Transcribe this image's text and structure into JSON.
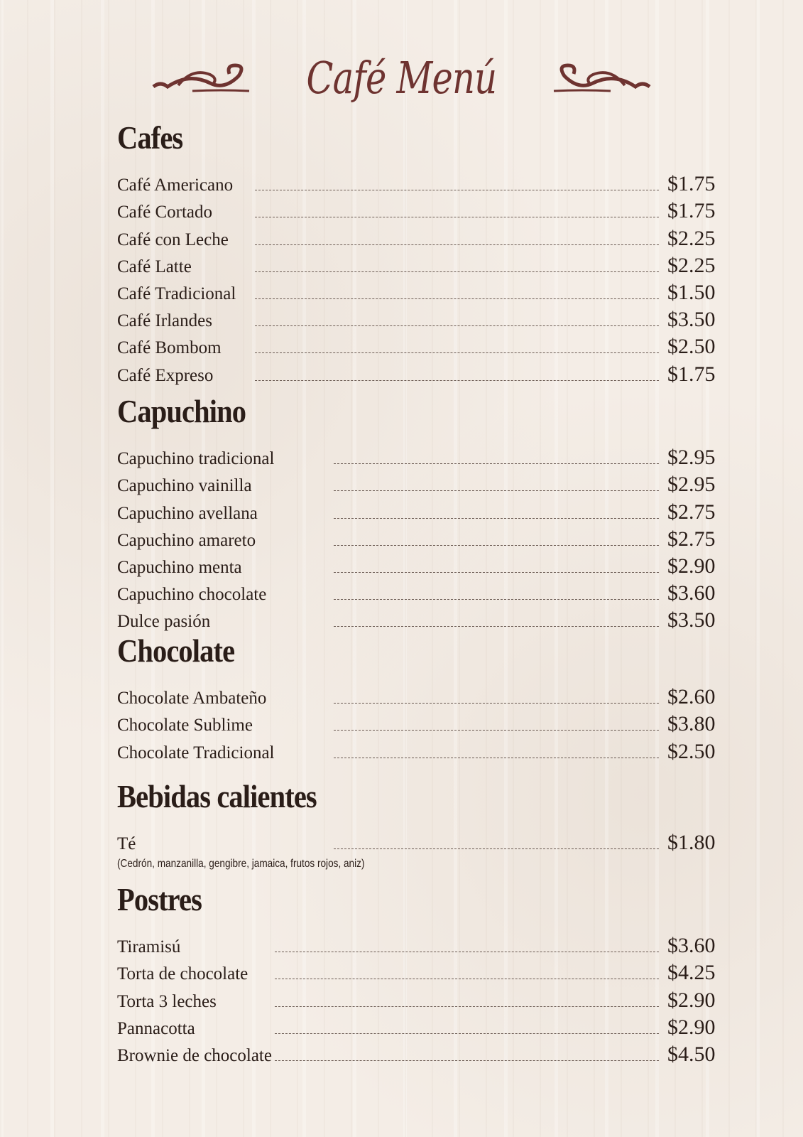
{
  "title": "Café Menú",
  "colors": {
    "title": "#6e3330",
    "text": "#2a1d18",
    "background": "#f4ede6"
  },
  "sections": [
    {
      "heading": "Cafes",
      "items": [
        {
          "name": "Café Americano",
          "price": "$1.75"
        },
        {
          "name": "Café Cortado",
          "price": "$1.75"
        },
        {
          "name": "Café con Leche",
          "price": "$2.25"
        },
        {
          "name": "Café Latte",
          "price": "$2.25"
        },
        {
          "name": "Café Tradicional",
          "price": "$1.50"
        },
        {
          "name": "Café Irlandes",
          "price": "$3.50"
        },
        {
          "name": "Café Bombom",
          "price": "$2.50"
        },
        {
          "name": "Café Expreso",
          "price": "$1.75"
        }
      ]
    },
    {
      "heading": "Capuchino",
      "items": [
        {
          "name": "Capuchino tradicional",
          "price": "$2.95"
        },
        {
          "name": "Capuchino vainilla",
          "price": "$2.95"
        },
        {
          "name": "Capuchino avellana",
          "price": "$2.75"
        },
        {
          "name": "Capuchino amareto",
          "price": "$2.75"
        },
        {
          "name": "Capuchino menta",
          "price": "$2.90"
        },
        {
          "name": "Capuchino chocolate",
          "price": "$3.60"
        },
        {
          "name": "Dulce pasión",
          "price": "$3.50"
        }
      ]
    },
    {
      "heading": "Chocolate",
      "items": [
        {
          "name": "Chocolate Ambateño",
          "price": "$2.60"
        },
        {
          "name": "Chocolate Sublime",
          "price": "$3.80"
        },
        {
          "name": "Chocolate Tradicional",
          "price": "$2.50"
        }
      ]
    },
    {
      "heading": "Bebidas calientes",
      "items": [
        {
          "name": "Té",
          "price": "$1.80"
        }
      ],
      "note": "(Cedrón, manzanilla, gengibre, jamaica, frutos rojos, aniz)"
    },
    {
      "heading": "Postres",
      "items": [
        {
          "name": "Tiramisú",
          "price": "$3.60"
        },
        {
          "name": "Torta de chocolate",
          "price": "$4.25"
        },
        {
          "name": "Torta 3 leches",
          "price": "$2.90"
        },
        {
          "name": "Pannacotta",
          "price": "$2.90"
        },
        {
          "name": "Brownie de chocolate",
          "price": "$4.50"
        }
      ]
    }
  ]
}
